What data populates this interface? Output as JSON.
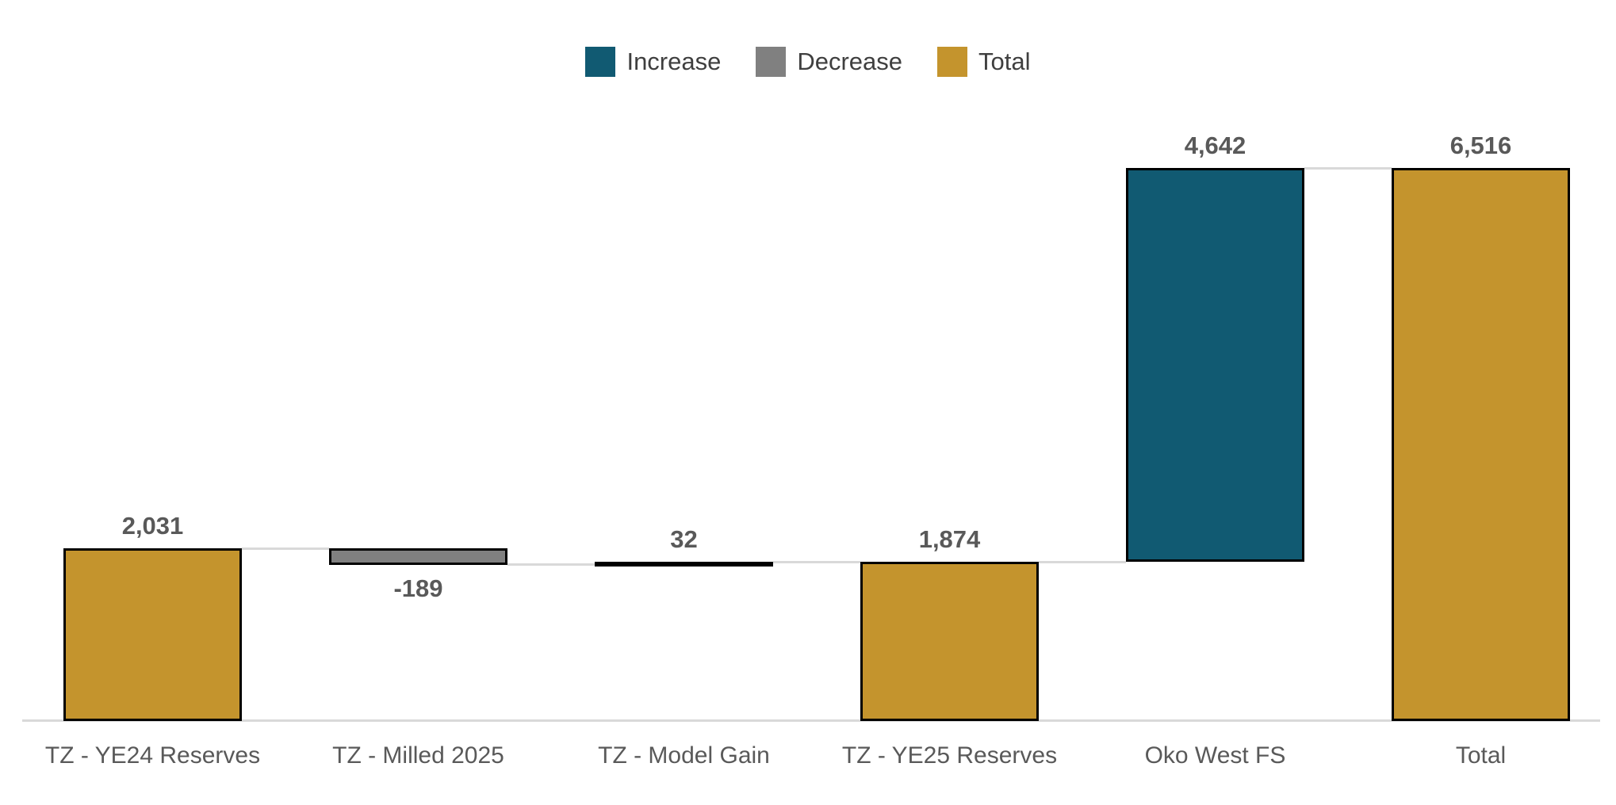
{
  "legend": {
    "items": [
      {
        "label": "Increase",
        "role": "increase"
      },
      {
        "label": "Decrease",
        "role": "decrease"
      },
      {
        "label": "Total",
        "role": "total"
      }
    ]
  },
  "chart_data": {
    "type": "bar",
    "subtype": "waterfall",
    "title": "",
    "xlabel": "",
    "ylabel": "",
    "categories": [
      "TZ - YE24 Reserves",
      "TZ - Milled 2025",
      "TZ - Model Gain",
      "TZ - YE25 Reserves",
      "Oko West FS",
      "Total"
    ],
    "values": [
      2031,
      -189,
      32,
      1874,
      4642,
      6516
    ],
    "value_labels": [
      "2,031",
      "-189",
      "32",
      "1,874",
      "4,642",
      "6,516"
    ],
    "bar_roles": [
      "total",
      "decrease",
      "increase",
      "total",
      "increase",
      "total"
    ],
    "ylim": [
      0,
      6516
    ],
    "grid": false,
    "y_axis_visible": false,
    "legend_position": "top-center",
    "colors": {
      "increase": "#115A72",
      "decrease": "#808080",
      "total": "#C4942D",
      "bar_border": "#000000",
      "connector": "#D9D9D9",
      "axis_line": "#D9D9D9",
      "data_label": "#595959",
      "category_label": "#595959",
      "legend_label": "#3F3F3F",
      "background": "#FFFFFF"
    }
  }
}
